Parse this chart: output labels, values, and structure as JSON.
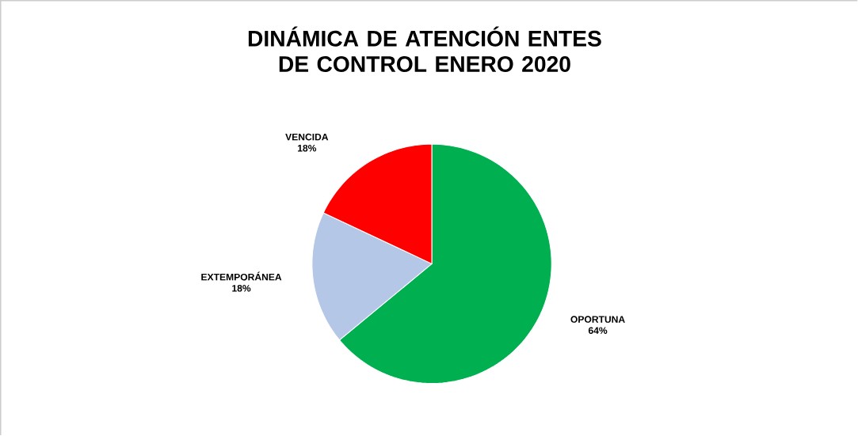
{
  "chart_data": {
    "type": "pie",
    "title": "DINÁMICA DE ATENCIÓN ENTES DE CONTROL ENERO 2020",
    "categories": [
      "OPORTUNA",
      "EXTEMPORÁNEA",
      "VENCIDA"
    ],
    "values": [
      64,
      18,
      18
    ],
    "colors": [
      "#00b050",
      "#b4c7e7",
      "#ff0000"
    ],
    "value_labels": [
      "64%",
      "18%",
      "18%"
    ],
    "legend": false
  }
}
